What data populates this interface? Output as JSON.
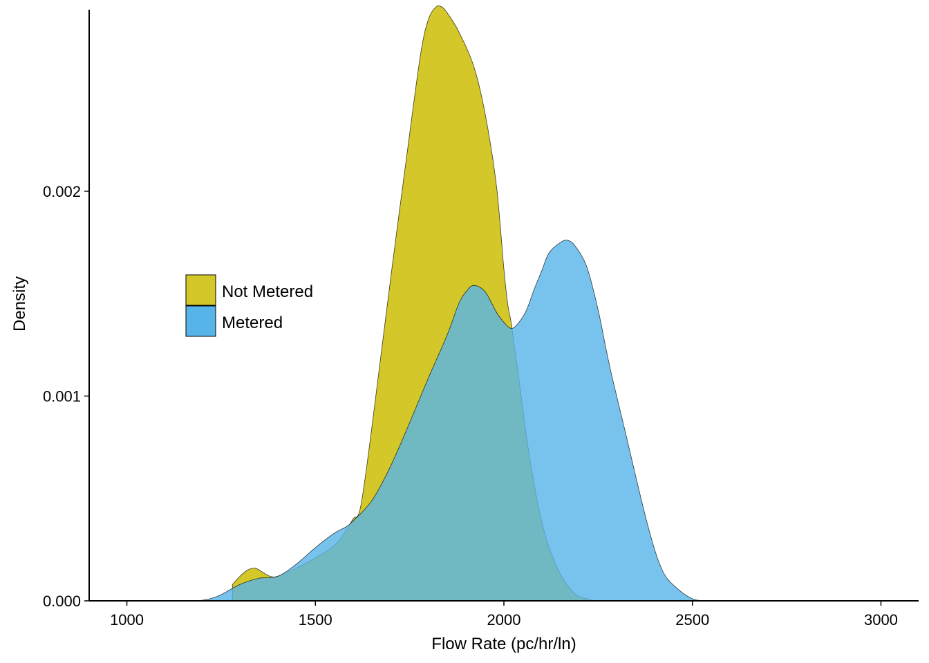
{
  "chart_data": {
    "type": "area",
    "subtype": "density",
    "title": "",
    "xlabel": "Flow Rate (pc/hr/ln)",
    "ylabel": "Density",
    "xlim": [
      900,
      3100
    ],
    "ylim": [
      0,
      0.0029
    ],
    "x_ticks": [
      1000,
      1500,
      2000,
      2500,
      3000
    ],
    "x_tick_labels": [
      "1000",
      "1500",
      "2000",
      "2500",
      "3000"
    ],
    "y_ticks": [
      0,
      0.001,
      0.002
    ],
    "y_tick_labels": [
      "0.000",
      "0.001",
      "0.002"
    ],
    "grid": false,
    "legend_position": "left-middle",
    "series": [
      {
        "name": "Not Metered",
        "color": "#d4c72a",
        "x": [
          1280,
          1300,
          1320,
          1340,
          1360,
          1380,
          1400,
          1450,
          1500,
          1550,
          1580,
          1600,
          1620,
          1650,
          1700,
          1750,
          1780,
          1800,
          1820,
          1835,
          1850,
          1880,
          1920,
          1950,
          1980,
          2000,
          2010,
          2020,
          2040,
          2060,
          2080,
          2100,
          2120,
          2150,
          2180,
          2200,
          2220,
          2240
        ],
        "y": [
          8e-05,
          0.00012,
          0.00015,
          0.00016,
          0.00014,
          0.00012,
          0.00012,
          0.00016,
          0.00021,
          0.00027,
          0.00034,
          0.0004,
          0.00046,
          0.00085,
          0.00158,
          0.00228,
          0.00268,
          0.00284,
          0.0029,
          0.0029,
          0.00287,
          0.00278,
          0.00261,
          0.00238,
          0.00203,
          0.00162,
          0.00145,
          0.00135,
          0.00108,
          0.0008,
          0.00057,
          0.00039,
          0.00026,
          0.00013,
          5e-05,
          2e-05,
          1e-05,
          0
        ]
      },
      {
        "name": "Metered",
        "color": "#56b4e9",
        "x": [
          1190,
          1220,
          1250,
          1300,
          1350,
          1400,
          1450,
          1500,
          1550,
          1580,
          1600,
          1650,
          1700,
          1750,
          1800,
          1850,
          1880,
          1900,
          1920,
          1950,
          1980,
          2000,
          2020,
          2040,
          2060,
          2080,
          2100,
          2120,
          2150,
          2170,
          2190,
          2220,
          2250,
          2280,
          2320,
          2380,
          2420,
          2460,
          2500,
          2530
        ],
        "y": [
          0,
          1e-05,
          3e-05,
          8e-05,
          0.00011,
          0.00012,
          0.00018,
          0.00026,
          0.00033,
          0.00036,
          0.00039,
          0.00049,
          0.00066,
          0.00087,
          0.00109,
          0.0013,
          0.00145,
          0.00151,
          0.00154,
          0.00151,
          0.00141,
          0.00136,
          0.00133,
          0.00136,
          0.00142,
          0.00152,
          0.00161,
          0.0017,
          0.00175,
          0.00176,
          0.00173,
          0.00163,
          0.00142,
          0.00115,
          0.00084,
          0.00038,
          0.00015,
          6e-05,
          1e-05,
          0
        ]
      }
    ]
  }
}
